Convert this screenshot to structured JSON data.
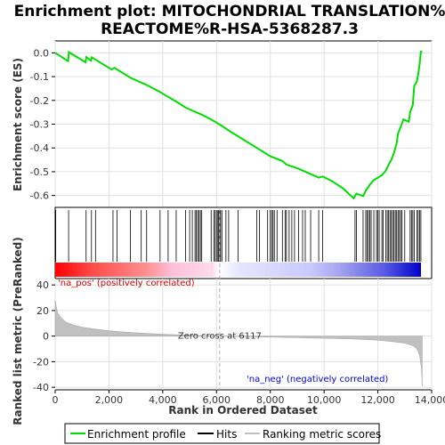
{
  "chart_data": {
    "type": "line",
    "title_line1": "Enrichment plot: MITOCHONDRIAL TRANSLATION%",
    "title_line2": "REACTOME%R-HSA-5368287.3",
    "ylabel_top": "Enrichment score (ES)",
    "ylabel_bottom": "Ranked list metric (PreRanked)",
    "xlabel": "Rank in Ordered Dataset",
    "xlim": [
      0,
      14000
    ],
    "es_ylim": [
      -0.65,
      0.05
    ],
    "metric_ylim": [
      -42,
      45
    ],
    "x_ticks": [
      0,
      2000,
      4000,
      6000,
      8000,
      10000,
      12000,
      14000
    ],
    "x_tick_labels": [
      "0",
      "2,000",
      "4,000",
      "6,000",
      "8,000",
      "10,000",
      "12,000",
      "14,000"
    ],
    "es_ticks": [
      0.0,
      -0.1,
      -0.2,
      -0.3,
      -0.4,
      -0.5,
      -0.6
    ],
    "es_tick_labels": [
      "0.0",
      "-0.1",
      "-0.2",
      "-0.3",
      "-0.4",
      "-0.5",
      "-0.6"
    ],
    "metric_ticks": [
      40,
      20,
      0,
      -20,
      -40
    ],
    "metric_tick_labels": [
      "40",
      "20",
      "0",
      "-20",
      "-40"
    ],
    "zero_cross_text": "Zero cross at 6117",
    "zero_cross_rank": 6117,
    "pos_label": "'na_pos' (positively correlated)",
    "neg_label": "'na_neg' (negatively correlated)",
    "n_ranks": 13650,
    "hits": [
      20,
      500,
      1150,
      1350,
      1500,
      2150,
      2300,
      2800,
      3200,
      3400,
      3900,
      4200,
      4500,
      4850,
      5000,
      5100,
      5200,
      5250,
      5300,
      5350,
      5400,
      5450,
      5800,
      5900,
      5950,
      6000,
      6050,
      6080,
      6120,
      6150,
      6200,
      6350,
      6450,
      6800,
      7500,
      7600,
      7900,
      8000,
      8050,
      8100,
      8150,
      8250,
      8450,
      8550,
      8600,
      8700,
      8800,
      8900,
      9050,
      9200,
      9300,
      9500,
      9800,
      9950,
      11150,
      11200,
      11450,
      11550,
      11600,
      11650,
      11700,
      11750,
      11850,
      11950,
      12000,
      12050,
      12150,
      12200,
      12300,
      12350,
      12400,
      12450,
      12500,
      12550,
      12600,
      12650,
      12700,
      12750,
      12800,
      12850,
      12900,
      13000,
      13200,
      13250,
      13300,
      13350,
      13450,
      13500,
      13550,
      13600
    ],
    "es_points": [
      [
        0,
        0.0
      ],
      [
        480,
        -0.035
      ],
      [
        510,
        0.003
      ],
      [
        1130,
        -0.04
      ],
      [
        1160,
        -0.018
      ],
      [
        1330,
        -0.033
      ],
      [
        1360,
        -0.019
      ],
      [
        2100,
        -0.07
      ],
      [
        2200,
        -0.063
      ],
      [
        2800,
        -0.105
      ],
      [
        3200,
        -0.125
      ],
      [
        3400,
        -0.135
      ],
      [
        3900,
        -0.165
      ],
      [
        4200,
        -0.185
      ],
      [
        4500,
        -0.205
      ],
      [
        4850,
        -0.23
      ],
      [
        5200,
        -0.248
      ],
      [
        5450,
        -0.26
      ],
      [
        5800,
        -0.28
      ],
      [
        6100,
        -0.3
      ],
      [
        6500,
        -0.33
      ],
      [
        7000,
        -0.365
      ],
      [
        7500,
        -0.4
      ],
      [
        8000,
        -0.435
      ],
      [
        8450,
        -0.455
      ],
      [
        8600,
        -0.47
      ],
      [
        9000,
        -0.485
      ],
      [
        9500,
        -0.51
      ],
      [
        9800,
        -0.525
      ],
      [
        9950,
        -0.52
      ],
      [
        10300,
        -0.54
      ],
      [
        10700,
        -0.57
      ],
      [
        11100,
        -0.612
      ],
      [
        11200,
        -0.592
      ],
      [
        11450,
        -0.603
      ],
      [
        11550,
        -0.58
      ],
      [
        11700,
        -0.555
      ],
      [
        11850,
        -0.535
      ],
      [
        12000,
        -0.525
      ],
      [
        12150,
        -0.515
      ],
      [
        12300,
        -0.495
      ],
      [
        12400,
        -0.47
      ],
      [
        12500,
        -0.45
      ],
      [
        12600,
        -0.42
      ],
      [
        12700,
        -0.38
      ],
      [
        12750,
        -0.34
      ],
      [
        12850,
        -0.31
      ],
      [
        12950,
        -0.28
      ],
      [
        13150,
        -0.29
      ],
      [
        13200,
        -0.25
      ],
      [
        13300,
        -0.22
      ],
      [
        13350,
        -0.14
      ],
      [
        13450,
        -0.12
      ],
      [
        13500,
        -0.09
      ],
      [
        13550,
        -0.05
      ],
      [
        13600,
        0.005
      ],
      [
        13650,
        0.005
      ]
    ],
    "metric_profile": [
      [
        0,
        28
      ],
      [
        50,
        22
      ],
      [
        100,
        18
      ],
      [
        200,
        15
      ],
      [
        400,
        11
      ],
      [
        700,
        8.5
      ],
      [
        1000,
        7
      ],
      [
        1500,
        5.5
      ],
      [
        2000,
        4.2
      ],
      [
        2500,
        3.3
      ],
      [
        3000,
        2.6
      ],
      [
        3500,
        2.0
      ],
      [
        4000,
        1.5
      ],
      [
        4500,
        1.1
      ],
      [
        5000,
        0.7
      ],
      [
        5500,
        0.4
      ],
      [
        6117,
        0.0
      ],
      [
        7000,
        -0.4
      ],
      [
        8000,
        -0.8
      ],
      [
        9000,
        -1.2
      ],
      [
        10000,
        -1.7
      ],
      [
        11000,
        -2.2
      ],
      [
        11500,
        -2.7
      ],
      [
        12000,
        -3.2
      ],
      [
        12500,
        -4.2
      ],
      [
        13000,
        -5.5
      ],
      [
        13300,
        -7.5
      ],
      [
        13450,
        -10
      ],
      [
        13550,
        -15
      ],
      [
        13620,
        -25
      ],
      [
        13650,
        -39
      ]
    ],
    "legend": [
      "Enrichment profile",
      "Hits",
      "Ranking metric scores"
    ],
    "colors": {
      "es_line": "#00dd00",
      "hit": "#000000",
      "metric_fill": "#c0c0c0",
      "pos_text": "#dd0000",
      "neg_text": "#0000dd",
      "frame": "#000000",
      "grid": "#e0e0e0"
    }
  }
}
